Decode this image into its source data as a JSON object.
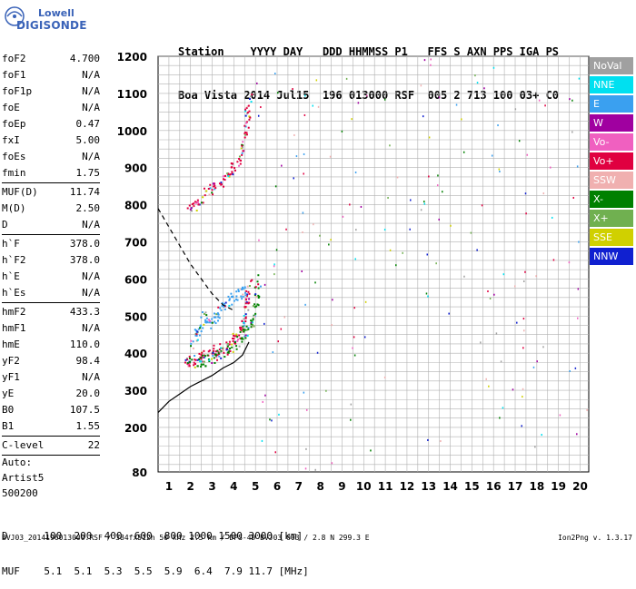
{
  "logo": {
    "line1": "Lowell",
    "line2": "DIGISONDE"
  },
  "header": {
    "labels": "Station    YYYY DAY   DDD HHMMSS P1   FFS S AXN PPS IGA PS",
    "values": "Boa Vista 2014 Jul15  196 013000 RSF  005 2 713 100 03+ C0"
  },
  "parameters": {
    "group1": [
      {
        "name": "foF2",
        "value": "4.700"
      },
      {
        "name": "foF1",
        "value": "N/A"
      },
      {
        "name": "foF1p",
        "value": "N/A"
      },
      {
        "name": "foE",
        "value": "N/A"
      },
      {
        "name": "foEp",
        "value": "0.47"
      },
      {
        "name": "fxI",
        "value": "5.00"
      },
      {
        "name": "foEs",
        "value": "N/A"
      },
      {
        "name": "fmin",
        "value": "1.75"
      }
    ],
    "group2": [
      {
        "name": "MUF(D)",
        "value": "11.74"
      },
      {
        "name": "M(D)",
        "value": "2.50"
      },
      {
        "name": "D",
        "value": "N/A"
      }
    ],
    "group3": [
      {
        "name": "h`F",
        "value": "378.0"
      },
      {
        "name": "h`F2",
        "value": "378.0"
      },
      {
        "name": "h`E",
        "value": "N/A"
      },
      {
        "name": "h`Es",
        "value": "N/A"
      }
    ],
    "group4": [
      {
        "name": "hmF2",
        "value": "433.3"
      },
      {
        "name": "hmF1",
        "value": "N/A"
      },
      {
        "name": "hmE",
        "value": "110.0"
      },
      {
        "name": "yF2",
        "value": "98.4"
      },
      {
        "name": "yF1",
        "value": "N/A"
      },
      {
        "name": "yE",
        "value": "20.0"
      },
      {
        "name": "B0",
        "value": "107.5"
      },
      {
        "name": "B1",
        "value": "1.55"
      }
    ],
    "group5": [
      {
        "name": "C-level",
        "value": "22"
      }
    ],
    "auto": [
      "Auto:",
      "Artist5",
      "500200"
    ]
  },
  "legend": [
    {
      "label": "NoVal",
      "color": "#a0a0a0"
    },
    {
      "label": "NNE",
      "color": "#00e0f0"
    },
    {
      "label": "E",
      "color": "#3aa0f0"
    },
    {
      "label": "W",
      "color": "#a000a0"
    },
    {
      "label": "Vo-",
      "color": "#f060c0"
    },
    {
      "label": "Vo+",
      "color": "#e00040"
    },
    {
      "label": "SSW",
      "color": "#f0b0b0"
    },
    {
      "label": "X-",
      "color": "#008000"
    },
    {
      "label": "X+",
      "color": "#70b050"
    },
    {
      "label": "SSE",
      "color": "#d0d000"
    },
    {
      "label": "NNW",
      "color": "#1020d0"
    }
  ],
  "footer": {
    "d_row": "D      100  200  400  600  800 1000 1500 3000 [km]",
    "muf_row": "MUF    5.1  5.1  5.3  5.5  5.9  6.4  7.9 11.7 [MHz]",
    "file": "BVJ03_2014196013000.RSF / 384fx512h 50 kHz 2.5 km / DPS-4D BVJ03 003 / 2.8 N 299.3 E",
    "version": "Ion2Png v. 1.3.17"
  },
  "chart_data": {
    "type": "scatter",
    "x_ticks": [
      1,
      2,
      3,
      4,
      5,
      6,
      7,
      8,
      9,
      10,
      11,
      12,
      13,
      14,
      15,
      16,
      17,
      18,
      19,
      20
    ],
    "y_ticks": [
      80,
      200,
      300,
      400,
      500,
      600,
      700,
      800,
      900,
      1000,
      1100,
      1200
    ],
    "xlim": [
      0.5,
      20.4
    ],
    "ylim": [
      80,
      1200
    ],
    "grid": true,
    "legend_position": "right",
    "traces": [
      {
        "name": "F2 O-trace",
        "color": "#e00040",
        "x": [
          1.75,
          2.0,
          2.5,
          3.0,
          3.5,
          4.0,
          4.3,
          4.5,
          4.6,
          4.7
        ],
        "y": [
          378,
          382,
          392,
          405,
          418,
          440,
          465,
          500,
          545,
          600
        ]
      },
      {
        "name": "F2 X-trace",
        "color": "#008000",
        "x": [
          2.0,
          2.5,
          3.0,
          3.5,
          4.0,
          4.5,
          4.8,
          5.0,
          5.1
        ],
        "y": [
          375,
          380,
          390,
          405,
          425,
          455,
          490,
          540,
          600
        ]
      },
      {
        "name": "F2 spread",
        "color": "#3aa0f0",
        "x": [
          2.0,
          2.3,
          2.6,
          3.0,
          3.4,
          3.8,
          4.2,
          4.5
        ],
        "y": [
          420,
          460,
          500,
          480,
          520,
          540,
          560,
          575
        ]
      },
      {
        "name": "second hop",
        "color": "#e00040",
        "x": [
          1.9,
          2.3,
          2.8,
          3.3,
          3.8,
          4.2,
          4.5,
          4.6,
          4.7
        ],
        "y": [
          780,
          810,
          840,
          860,
          890,
          925,
          980,
          1040,
          1100
        ]
      },
      {
        "name": "profile",
        "color": "#000000",
        "x": [
          0.5,
          1.0,
          1.5,
          2.0,
          2.5,
          3.0,
          3.5,
          4.0,
          4.4,
          4.7
        ],
        "y": [
          240,
          270,
          290,
          310,
          325,
          340,
          360,
          375,
          395,
          430
        ]
      },
      {
        "name": "model dashed",
        "color": "#000000",
        "x": [
          0.5,
          1.0,
          1.5,
          2.0,
          2.5,
          3.0,
          3.5,
          4.0
        ],
        "y": [
          790,
          740,
          690,
          640,
          600,
          560,
          530,
          515
        ]
      }
    ]
  }
}
